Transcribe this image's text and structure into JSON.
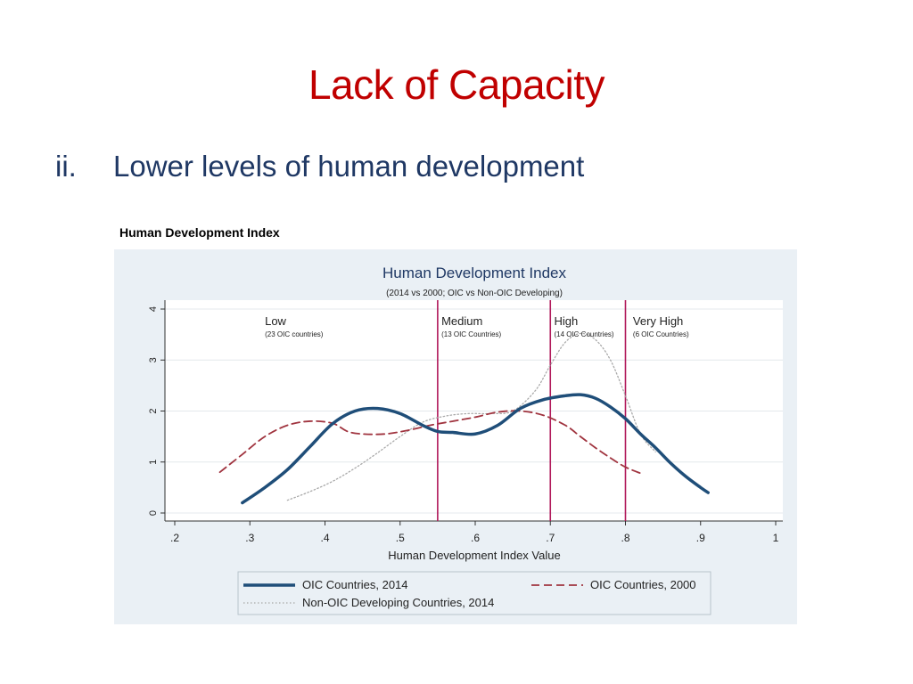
{
  "slide": {
    "title": "Lack of Capacity",
    "bullet_number": "ii.",
    "bullet_text": "Lower levels of human development",
    "figure_heading": "Human Development Index"
  },
  "colors": {
    "title": "#c00000",
    "bullet": "#1f3864",
    "panel_bg": "#eaf0f5",
    "oic_2014": "#1f4e79",
    "oic_2000": "#a0343f",
    "non_oic_2014": "#a9a9a9",
    "threshold_lines": "#b0185a"
  },
  "chart_data": {
    "type": "line",
    "title": "Human Development Index",
    "subtitle": "(2014 vs 2000; OIC vs Non-OIC Developing)",
    "xlabel": "Human Development Index Value",
    "ylabel": "",
    "xlim": [
      0.2,
      1.0
    ],
    "ylim": [
      0,
      4
    ],
    "xticks": [
      ".2",
      ".3",
      ".4",
      ".5",
      ".6",
      ".7",
      ".8",
      ".9",
      "1"
    ],
    "yticks": [
      "0",
      "1",
      "2",
      "3",
      "4"
    ],
    "grid": true,
    "legend_position": "bottom",
    "thresholds": [
      0.55,
      0.7,
      0.8
    ],
    "categories": [
      {
        "name": "Low",
        "note": "(23 OIC countries)"
      },
      {
        "name": "Medium",
        "note": "(13 OIC Countries)"
      },
      {
        "name": "High",
        "note": "(14 OIC Countries)"
      },
      {
        "name": "Very High",
        "note": "(6 OIC Countries)"
      }
    ],
    "series": [
      {
        "name": "OIC Countries, 2014",
        "style": "solid",
        "x": [
          0.29,
          0.32,
          0.35,
          0.38,
          0.41,
          0.44,
          0.47,
          0.5,
          0.53,
          0.55,
          0.57,
          0.6,
          0.63,
          0.66,
          0.69,
          0.72,
          0.74,
          0.76,
          0.78,
          0.8,
          0.82,
          0.84,
          0.86,
          0.88,
          0.9,
          0.91
        ],
        "y": [
          0.2,
          0.5,
          0.85,
          1.3,
          1.75,
          2.0,
          2.05,
          1.95,
          1.72,
          1.6,
          1.58,
          1.55,
          1.72,
          2.05,
          2.22,
          2.3,
          2.32,
          2.25,
          2.08,
          1.85,
          1.55,
          1.28,
          0.98,
          0.72,
          0.5,
          0.4
        ]
      },
      {
        "name": "OIC Countries, 2000",
        "style": "dashed",
        "x": [
          0.26,
          0.29,
          0.32,
          0.35,
          0.38,
          0.41,
          0.43,
          0.45,
          0.48,
          0.51,
          0.54,
          0.57,
          0.6,
          0.63,
          0.66,
          0.69,
          0.72,
          0.74,
          0.76,
          0.78,
          0.8,
          0.82
        ],
        "y": [
          0.8,
          1.15,
          1.5,
          1.72,
          1.8,
          1.76,
          1.6,
          1.55,
          1.55,
          1.62,
          1.72,
          1.8,
          1.88,
          1.98,
          2.0,
          1.92,
          1.72,
          1.5,
          1.28,
          1.08,
          0.9,
          0.78
        ]
      },
      {
        "name": "Non-OIC Developing Countries, 2014",
        "style": "dotted",
        "x": [
          0.35,
          0.38,
          0.41,
          0.44,
          0.47,
          0.5,
          0.53,
          0.56,
          0.59,
          0.62,
          0.65,
          0.68,
          0.7,
          0.72,
          0.74,
          0.76,
          0.78,
          0.8,
          0.82,
          0.84
        ],
        "y": [
          0.25,
          0.42,
          0.62,
          0.88,
          1.18,
          1.5,
          1.78,
          1.9,
          1.95,
          1.95,
          2.0,
          2.4,
          2.9,
          3.35,
          3.52,
          3.4,
          3.0,
          2.3,
          1.55,
          1.2
        ]
      }
    ]
  }
}
